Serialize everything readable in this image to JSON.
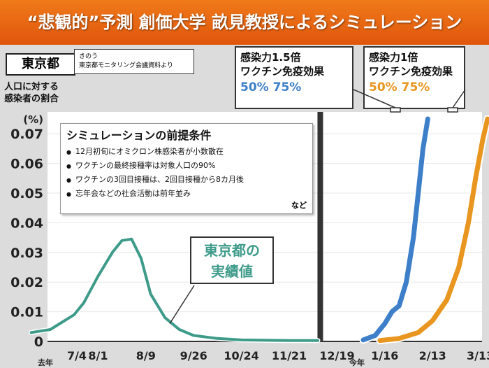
{
  "header": {
    "title": "“悲観的”予測 創価大学 畝見教授によるシミュレーション"
  },
  "region_badge": "東京都",
  "source_note": [
    "きのう",
    "東京都モニタリング会議資料より"
  ],
  "y_axis_label": [
    "人口に対する",
    "感染者の割合"
  ],
  "callouts": {
    "blue": {
      "line1": "感染力1.5倍",
      "line2": "ワクチン免疫効果",
      "values": "50% 75%"
    },
    "orange": {
      "line1": "感染力1倍",
      "line2": "ワクチン免疫効果",
      "values": "50% 75%"
    }
  },
  "premise": {
    "title": "シミュレーションの前提条件",
    "items": [
      "12月初旬にオミクロン株感染者が小数散在",
      "ワクチンの最終接種率は対象人口の90%",
      "ワクチンの3回目接種は、2回目接種から8カ月後",
      "忘年会などの社会活動は前年並み"
    ],
    "note": "など"
  },
  "actual_label": [
    "東京都の",
    "実績値"
  ],
  "colors": {
    "header": "#e9670f",
    "actual": "#3e9b8a",
    "blue": "#3d7fc9",
    "orange": "#e8961f"
  },
  "chart_data": {
    "type": "line",
    "y_unit": "(%)",
    "ylim": [
      0,
      0.075
    ],
    "yticks": [
      0,
      0.01,
      0.02,
      0.03,
      0.04,
      0.05,
      0.06,
      0.07
    ],
    "ytick_labels": [
      "0",
      "0.01",
      "0.02",
      "0.03",
      "0.04",
      "0.05",
      "0.06",
      "0.07"
    ],
    "xtick_labels": [
      "7/4",
      "8/1",
      "8/9",
      "9/26",
      "10/24",
      "11/21",
      "12/19",
      "1/16",
      "2/13",
      "3/13"
    ],
    "year_labels": [
      "去年",
      "今年"
    ],
    "x_indices": [
      0,
      1,
      2,
      3,
      4,
      5,
      6,
      7,
      8,
      9
    ],
    "divider_between": [
      "11/21",
      "12/19"
    ],
    "series": [
      {
        "name": "東京都の実績値",
        "color": "#3e9b8a",
        "x": [
          -0.4,
          0,
          0.5,
          0.7,
          1,
          1.3,
          1.5,
          1.7,
          1.9,
          2.1,
          2.4,
          2.7,
          3,
          3.5,
          4,
          5,
          5.6
        ],
        "y": [
          0.003,
          0.004,
          0.009,
          0.013,
          0.022,
          0.03,
          0.034,
          0.0345,
          0.028,
          0.016,
          0.008,
          0.004,
          0.002,
          0.001,
          0.0005,
          0.0003,
          0.0003
        ]
      },
      {
        "name": "感染力1.5倍",
        "color": "#3d7fc9",
        "x": [
          6.55,
          6.8,
          7.0,
          7.15,
          7.3,
          7.45,
          7.6,
          7.7,
          7.8,
          7.9
        ],
        "y": [
          0.0005,
          0.002,
          0.006,
          0.01,
          0.012,
          0.02,
          0.035,
          0.05,
          0.065,
          0.075
        ]
      },
      {
        "name": "感染力1倍",
        "color": "#e8961f",
        "x": [
          6.9,
          7.3,
          7.7,
          8.0,
          8.3,
          8.55,
          8.75,
          8.9,
          9.05,
          9.15
        ],
        "y": [
          0.0003,
          0.001,
          0.003,
          0.007,
          0.014,
          0.025,
          0.04,
          0.055,
          0.068,
          0.075
        ]
      }
    ]
  }
}
